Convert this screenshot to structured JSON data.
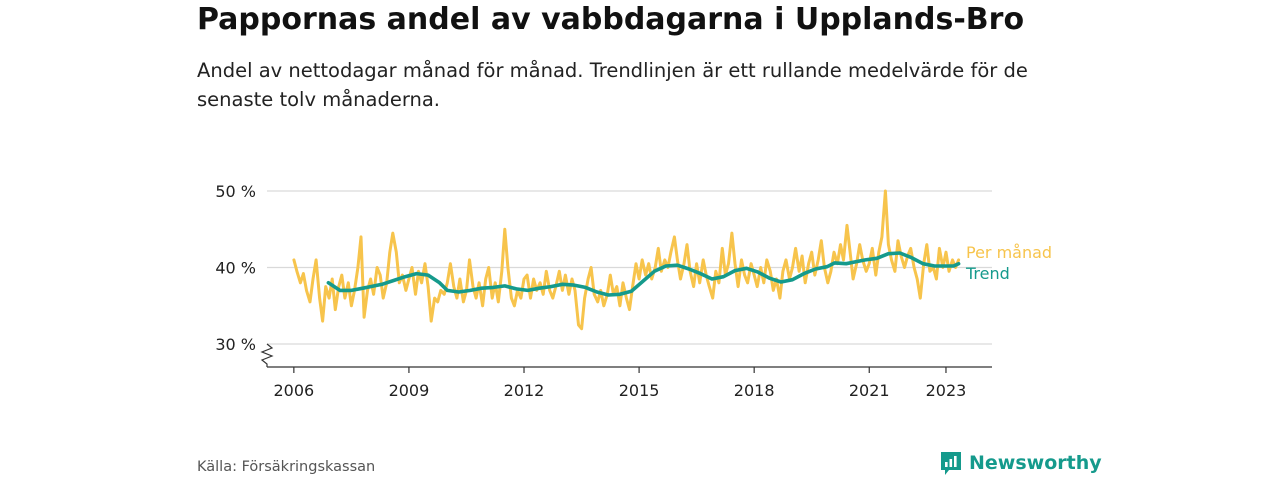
{
  "title": "Pappornas andel av vabbdagarna i Upplands-Bro",
  "subtitle": "Andel av nettodagar månad för månad. Trendlinjen är ett rullande medelvärde för de senaste tolv månaderna.",
  "source": "Källa: Försäkringskassan",
  "brand": {
    "name": "Newsworthy",
    "icon": "newsworthy-logo-icon"
  },
  "colors": {
    "monthly": "#f7c44c",
    "trend": "#159a8c",
    "grid": "#d9d9d9",
    "axis": "#333333",
    "text": "#222222"
  },
  "chart_data": {
    "type": "line",
    "title": "Pappornas andel av vabbdagarna i Upplands-Bro",
    "xlim": [
      2005.3,
      2024.2
    ],
    "ylim": [
      27,
      52
    ],
    "yticks": [
      {
        "value": 30,
        "label": "30 %"
      },
      {
        "value": 40,
        "label": "40 %"
      },
      {
        "value": 50,
        "label": "50 %"
      }
    ],
    "xticks": [
      {
        "value": 2006,
        "label": "2006"
      },
      {
        "value": 2009,
        "label": "2009"
      },
      {
        "value": 2012,
        "label": "2012"
      },
      {
        "value": 2015,
        "label": "2015"
      },
      {
        "value": 2018,
        "label": "2018"
      },
      {
        "value": 2021,
        "label": "2021"
      },
      {
        "value": 2023,
        "label": "2023"
      }
    ],
    "grid": true,
    "axis_break": true,
    "series": [
      {
        "name": "Per månad",
        "points": [
          [
            2006.0,
            41.0
          ],
          [
            2006.08,
            39.5
          ],
          [
            2006.17,
            38.0
          ],
          [
            2006.25,
            39.2
          ],
          [
            2006.33,
            37.0
          ],
          [
            2006.42,
            35.5
          ],
          [
            2006.5,
            38.5
          ],
          [
            2006.58,
            41.0
          ],
          [
            2006.67,
            36.0
          ],
          [
            2006.75,
            33.0
          ],
          [
            2006.83,
            37.5
          ],
          [
            2006.92,
            36.0
          ],
          [
            2007.0,
            38.5
          ],
          [
            2007.08,
            34.5
          ],
          [
            2007.17,
            37.5
          ],
          [
            2007.25,
            39.0
          ],
          [
            2007.33,
            36.0
          ],
          [
            2007.42,
            38.0
          ],
          [
            2007.5,
            35.0
          ],
          [
            2007.58,
            37.0
          ],
          [
            2007.67,
            40.0
          ],
          [
            2007.75,
            44.0
          ],
          [
            2007.83,
            33.5
          ],
          [
            2007.92,
            37.0
          ],
          [
            2008.0,
            38.5
          ],
          [
            2008.08,
            36.5
          ],
          [
            2008.17,
            40.0
          ],
          [
            2008.25,
            39.0
          ],
          [
            2008.33,
            36.0
          ],
          [
            2008.42,
            38.0
          ],
          [
            2008.5,
            42.0
          ],
          [
            2008.58,
            44.5
          ],
          [
            2008.67,
            42.0
          ],
          [
            2008.75,
            38.0
          ],
          [
            2008.83,
            39.0
          ],
          [
            2008.92,
            37.0
          ],
          [
            2009.0,
            38.5
          ],
          [
            2009.08,
            40.0
          ],
          [
            2009.17,
            36.5
          ],
          [
            2009.25,
            39.5
          ],
          [
            2009.33,
            38.0
          ],
          [
            2009.42,
            40.5
          ],
          [
            2009.5,
            37.5
          ],
          [
            2009.58,
            33.0
          ],
          [
            2009.67,
            36.0
          ],
          [
            2009.75,
            35.5
          ],
          [
            2009.83,
            37.0
          ],
          [
            2009.92,
            36.5
          ],
          [
            2010.0,
            38.0
          ],
          [
            2010.08,
            40.5
          ],
          [
            2010.17,
            37.5
          ],
          [
            2010.25,
            36.0
          ],
          [
            2010.33,
            38.5
          ],
          [
            2010.42,
            35.5
          ],
          [
            2010.5,
            37.0
          ],
          [
            2010.58,
            41.0
          ],
          [
            2010.67,
            37.5
          ],
          [
            2010.75,
            36.0
          ],
          [
            2010.83,
            38.0
          ],
          [
            2010.92,
            35.0
          ],
          [
            2011.0,
            38.5
          ],
          [
            2011.08,
            40.0
          ],
          [
            2011.17,
            36.0
          ],
          [
            2011.25,
            38.0
          ],
          [
            2011.33,
            35.5
          ],
          [
            2011.42,
            39.5
          ],
          [
            2011.5,
            45.0
          ],
          [
            2011.58,
            40.0
          ],
          [
            2011.67,
            36.0
          ],
          [
            2011.75,
            35.0
          ],
          [
            2011.83,
            37.0
          ],
          [
            2011.92,
            36.0
          ],
          [
            2012.0,
            38.5
          ],
          [
            2012.08,
            39.0
          ],
          [
            2012.17,
            36.0
          ],
          [
            2012.25,
            38.5
          ],
          [
            2012.33,
            37.0
          ],
          [
            2012.42,
            38.0
          ],
          [
            2012.5,
            36.5
          ],
          [
            2012.58,
            39.5
          ],
          [
            2012.67,
            37.0
          ],
          [
            2012.75,
            36.0
          ],
          [
            2012.83,
            37.5
          ],
          [
            2012.92,
            39.5
          ],
          [
            2013.0,
            37.0
          ],
          [
            2013.08,
            39.0
          ],
          [
            2013.17,
            36.5
          ],
          [
            2013.25,
            38.5
          ],
          [
            2013.33,
            37.0
          ],
          [
            2013.42,
            32.5
          ],
          [
            2013.5,
            32.0
          ],
          [
            2013.58,
            36.0
          ],
          [
            2013.67,
            38.5
          ],
          [
            2013.75,
            40.0
          ],
          [
            2013.83,
            36.5
          ],
          [
            2013.92,
            35.5
          ],
          [
            2014.0,
            37.0
          ],
          [
            2014.08,
            35.0
          ],
          [
            2014.17,
            36.5
          ],
          [
            2014.25,
            39.0
          ],
          [
            2014.33,
            36.5
          ],
          [
            2014.42,
            37.5
          ],
          [
            2014.5,
            35.0
          ],
          [
            2014.58,
            38.0
          ],
          [
            2014.67,
            36.0
          ],
          [
            2014.75,
            34.5
          ],
          [
            2014.83,
            37.5
          ],
          [
            2014.92,
            40.5
          ],
          [
            2015.0,
            38.5
          ],
          [
            2015.08,
            41.0
          ],
          [
            2015.17,
            39.0
          ],
          [
            2015.25,
            40.5
          ],
          [
            2015.33,
            38.5
          ],
          [
            2015.42,
            40.0
          ],
          [
            2015.5,
            42.5
          ],
          [
            2015.58,
            39.5
          ],
          [
            2015.67,
            41.0
          ],
          [
            2015.75,
            40.0
          ],
          [
            2015.83,
            42.0
          ],
          [
            2015.92,
            44.0
          ],
          [
            2016.0,
            41.0
          ],
          [
            2016.08,
            38.5
          ],
          [
            2016.17,
            40.5
          ],
          [
            2016.25,
            43.0
          ],
          [
            2016.33,
            39.5
          ],
          [
            2016.42,
            37.5
          ],
          [
            2016.5,
            40.5
          ],
          [
            2016.58,
            38.0
          ],
          [
            2016.67,
            41.0
          ],
          [
            2016.75,
            39.0
          ],
          [
            2016.83,
            37.5
          ],
          [
            2016.92,
            36.0
          ],
          [
            2017.0,
            39.5
          ],
          [
            2017.08,
            38.0
          ],
          [
            2017.17,
            42.5
          ],
          [
            2017.25,
            39.0
          ],
          [
            2017.33,
            40.5
          ],
          [
            2017.42,
            44.5
          ],
          [
            2017.5,
            40.5
          ],
          [
            2017.58,
            37.5
          ],
          [
            2017.67,
            41.0
          ],
          [
            2017.75,
            39.0
          ],
          [
            2017.83,
            38.0
          ],
          [
            2017.92,
            40.5
          ],
          [
            2018.0,
            39.0
          ],
          [
            2018.08,
            37.5
          ],
          [
            2018.17,
            40.0
          ],
          [
            2018.25,
            38.0
          ],
          [
            2018.33,
            41.0
          ],
          [
            2018.42,
            39.5
          ],
          [
            2018.5,
            37.0
          ],
          [
            2018.58,
            38.5
          ],
          [
            2018.67,
            36.0
          ],
          [
            2018.75,
            39.5
          ],
          [
            2018.83,
            41.0
          ],
          [
            2018.92,
            38.5
          ],
          [
            2019.0,
            40.0
          ],
          [
            2019.08,
            42.5
          ],
          [
            2019.17,
            39.5
          ],
          [
            2019.25,
            41.5
          ],
          [
            2019.33,
            38.0
          ],
          [
            2019.42,
            40.5
          ],
          [
            2019.5,
            42.0
          ],
          [
            2019.58,
            39.0
          ],
          [
            2019.67,
            41.0
          ],
          [
            2019.75,
            43.5
          ],
          [
            2019.83,
            40.0
          ],
          [
            2019.92,
            38.0
          ],
          [
            2020.0,
            39.5
          ],
          [
            2020.08,
            42.0
          ],
          [
            2020.17,
            40.5
          ],
          [
            2020.25,
            43.0
          ],
          [
            2020.33,
            41.0
          ],
          [
            2020.42,
            45.5
          ],
          [
            2020.5,
            42.0
          ],
          [
            2020.58,
            38.5
          ],
          [
            2020.67,
            40.5
          ],
          [
            2020.75,
            43.0
          ],
          [
            2020.83,
            41.0
          ],
          [
            2020.92,
            39.5
          ],
          [
            2021.0,
            40.5
          ],
          [
            2021.08,
            42.5
          ],
          [
            2021.17,
            39.0
          ],
          [
            2021.25,
            42.0
          ],
          [
            2021.33,
            44.0
          ],
          [
            2021.42,
            50.0
          ],
          [
            2021.5,
            43.0
          ],
          [
            2021.58,
            41.0
          ],
          [
            2021.67,
            39.5
          ],
          [
            2021.75,
            43.5
          ],
          [
            2021.83,
            41.5
          ],
          [
            2021.92,
            40.0
          ],
          [
            2022.0,
            41.5
          ],
          [
            2022.08,
            42.5
          ],
          [
            2022.17,
            40.0
          ],
          [
            2022.25,
            38.5
          ],
          [
            2022.33,
            36.0
          ],
          [
            2022.42,
            40.5
          ],
          [
            2022.5,
            43.0
          ],
          [
            2022.58,
            39.5
          ],
          [
            2022.67,
            40.0
          ],
          [
            2022.75,
            38.5
          ],
          [
            2022.83,
            42.5
          ],
          [
            2022.92,
            40.0
          ],
          [
            2023.0,
            42.0
          ],
          [
            2023.08,
            39.5
          ],
          [
            2023.17,
            41.0
          ],
          [
            2023.25,
            40.0
          ],
          [
            2023.33,
            41.0
          ]
        ],
        "label": "Per månad"
      },
      {
        "name": "Trend",
        "points": [
          [
            2006.9,
            38.0
          ],
          [
            2007.2,
            37.0
          ],
          [
            2007.5,
            37.0
          ],
          [
            2007.8,
            37.3
          ],
          [
            2008.0,
            37.5
          ],
          [
            2008.3,
            37.8
          ],
          [
            2008.6,
            38.3
          ],
          [
            2008.9,
            38.8
          ],
          [
            2009.2,
            39.2
          ],
          [
            2009.5,
            39.0
          ],
          [
            2009.8,
            38.0
          ],
          [
            2010.0,
            37.0
          ],
          [
            2010.3,
            36.8
          ],
          [
            2010.6,
            37.0
          ],
          [
            2010.9,
            37.3
          ],
          [
            2011.2,
            37.4
          ],
          [
            2011.5,
            37.6
          ],
          [
            2011.8,
            37.2
          ],
          [
            2012.1,
            37.0
          ],
          [
            2012.4,
            37.3
          ],
          [
            2012.7,
            37.5
          ],
          [
            2013.0,
            37.8
          ],
          [
            2013.3,
            37.7
          ],
          [
            2013.6,
            37.4
          ],
          [
            2013.9,
            36.8
          ],
          [
            2014.2,
            36.4
          ],
          [
            2014.5,
            36.5
          ],
          [
            2014.8,
            36.9
          ],
          [
            2015.1,
            38.2
          ],
          [
            2015.4,
            39.5
          ],
          [
            2015.7,
            40.2
          ],
          [
            2016.0,
            40.3
          ],
          [
            2016.3,
            39.8
          ],
          [
            2016.6,
            39.2
          ],
          [
            2016.9,
            38.5
          ],
          [
            2017.2,
            38.8
          ],
          [
            2017.5,
            39.6
          ],
          [
            2017.8,
            39.9
          ],
          [
            2018.1,
            39.4
          ],
          [
            2018.4,
            38.6
          ],
          [
            2018.7,
            38.1
          ],
          [
            2019.0,
            38.4
          ],
          [
            2019.3,
            39.2
          ],
          [
            2019.6,
            39.8
          ],
          [
            2019.9,
            40.1
          ],
          [
            2020.1,
            40.6
          ],
          [
            2020.4,
            40.5
          ],
          [
            2020.7,
            40.8
          ],
          [
            2020.9,
            41.0
          ],
          [
            2021.2,
            41.2
          ],
          [
            2021.5,
            41.8
          ],
          [
            2021.8,
            41.9
          ],
          [
            2022.1,
            41.3
          ],
          [
            2022.4,
            40.5
          ],
          [
            2022.7,
            40.2
          ],
          [
            2023.0,
            40.2
          ],
          [
            2023.2,
            40.2
          ],
          [
            2023.33,
            40.5
          ]
        ],
        "label": "Trend"
      }
    ]
  }
}
